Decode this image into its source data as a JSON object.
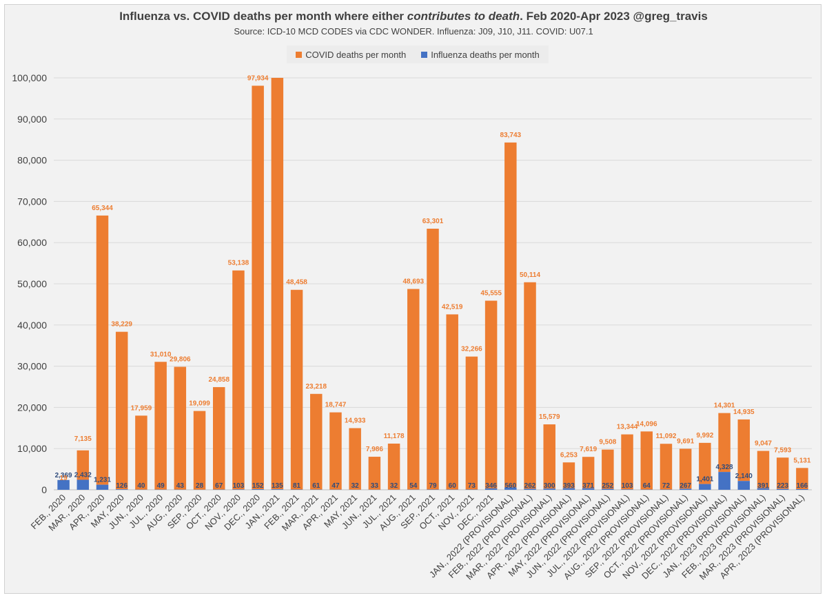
{
  "title_part1": "Influenza vs. COVID deaths per month where either ",
  "title_italic": "contributes to death",
  "title_part2": ".  Feb 2020-Apr 2023 @greg_travis",
  "subtitle": "Source: ICD-10 MCD CODES via CDC WONDER.  Influenza: J09, J10, J11.  COVID: U07.1",
  "legend": {
    "covid": "COVID deaths per month",
    "flu": "Influenza deaths per month"
  },
  "colors": {
    "covid": "#ed7d31",
    "flu": "#4472c4",
    "covid_label": "#ed7d31",
    "flu_label": "#2f4b7c"
  },
  "chart_data": {
    "type": "bar",
    "stacked": true,
    "ylim": [
      0,
      100000
    ],
    "yticks": [
      0,
      10000,
      20000,
      30000,
      40000,
      50000,
      60000,
      70000,
      80000,
      90000,
      100000
    ],
    "ytick_labels": [
      "0",
      "10,000",
      "20,000",
      "30,000",
      "40,000",
      "50,000",
      "60,000",
      "70,000",
      "80,000",
      "90,000",
      "100,000"
    ],
    "grid": true,
    "legend_position": "top-center",
    "categories": [
      "FEB., 2020",
      "MAR., 2020",
      "APR., 2020",
      "MAY, 2020",
      "JUN., 2020",
      "JUL., 2020",
      "AUG., 2020",
      "SEP., 2020",
      "OCT., 2020",
      "NOV., 2020",
      "DEC., 2020",
      "JAN., 2021",
      "FEB., 2021",
      "MAR., 2021",
      "APR., 2021",
      "MAY, 2021",
      "JUN., 2021",
      "JUL., 2021",
      "AUG., 2021",
      "SEP., 2021",
      "OCT., 2021",
      "NOV., 2021",
      "DEC., 2021",
      "JAN., 2022 (PROVISIONAL)",
      "FEB., 2022 (PROVISIONAL)",
      "MAR., 2022 (PROVISIONAL)",
      "APR., 2022 (PROVISIONAL)",
      "MAY, 2022 (PROVISIONAL)",
      "JUN., 2022 (PROVISIONAL)",
      "JUL., 2022 (PROVISIONAL)",
      "AUG., 2022 (PROVISIONAL)",
      "SEP., 2022 (PROVISIONAL)",
      "OCT., 2022 (PROVISIONAL)",
      "NOV., 2022 (PROVISIONAL)",
      "DEC., 2022 (PROVISIONAL)",
      "JAN., 2023 (PROVISIONAL)",
      "FEB., 2023 (PROVISIONAL)",
      "MAR., 2023 (PROVISIONAL)",
      "APR., 2023 (PROVISIONAL)"
    ],
    "series": [
      {
        "name": "Influenza deaths per month",
        "values": [
          2369,
          2432,
          1231,
          126,
          40,
          49,
          43,
          28,
          67,
          103,
          152,
          135,
          81,
          61,
          47,
          32,
          33,
          32,
          54,
          79,
          60,
          73,
          346,
          560,
          262,
          300,
          393,
          371,
          252,
          103,
          64,
          72,
          267,
          1401,
          4328,
          2140,
          391,
          223,
          166
        ],
        "labels": [
          "2,369",
          "2,432",
          "1,231",
          "126",
          "40",
          "49",
          "43",
          "28",
          "67",
          "103",
          "152",
          "135",
          "81",
          "61",
          "47",
          "32",
          "33",
          "32",
          "54",
          "79",
          "60",
          "73",
          "346",
          "560",
          "262",
          "300",
          "393",
          "371",
          "252",
          "103",
          "64",
          "72",
          "267",
          "1,401",
          "4,328",
          "2,140",
          "391",
          "223",
          "166"
        ]
      },
      {
        "name": "COVID deaths per month",
        "values": [
          19,
          7135,
          65344,
          38229,
          17959,
          31010,
          29806,
          19099,
          24858,
          53138,
          97934,
          100000,
          48458,
          23218,
          18747,
          14933,
          7986,
          11178,
          48693,
          63301,
          42519,
          32266,
          45555,
          83743,
          50114,
          15579,
          6253,
          7619,
          9508,
          13344,
          14096,
          11092,
          9691,
          9992,
          14301,
          14935,
          9047,
          7593,
          5131
        ],
        "labels": [
          "19",
          "7,135",
          "65,344",
          "38,229",
          "17,959",
          "31,010",
          "29,806",
          "19,099",
          "24,858",
          "53,138",
          "97,934",
          "",
          "48,458",
          "23,218",
          "18,747",
          "14,933",
          "7,986",
          "11,178",
          "48,693",
          "63,301",
          "42,519",
          "32,266",
          "45,555",
          "83,743",
          "50,114",
          "15,579",
          "6,253",
          "7,619",
          "9,508",
          "13,344",
          "14,096",
          "11,092",
          "9,691",
          "9,992",
          "14,301",
          "14,935",
          "9,047",
          "7,593",
          "5,131"
        ]
      }
    ]
  }
}
